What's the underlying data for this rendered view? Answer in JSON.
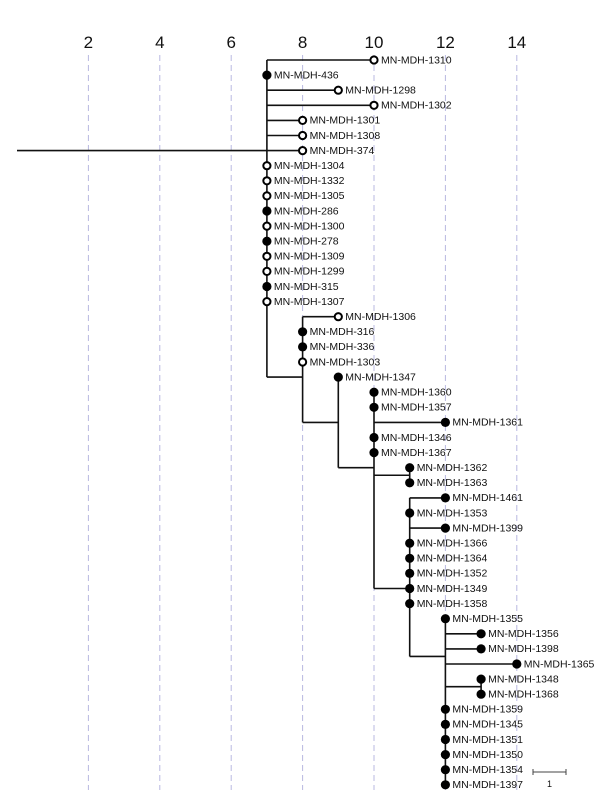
{
  "axis": {
    "ticks": [
      2,
      4,
      6,
      8,
      10,
      12,
      14
    ],
    "range": [
      0,
      15.8
    ],
    "grid": "dashed-vertical",
    "grid_color": "#b8b8e0"
  },
  "scale_bar": {
    "label": "1",
    "length": 1
  },
  "colors": {
    "line": "#111111",
    "filled_node": "#000000",
    "open_node": "#ffffff"
  },
  "tree": {
    "id": "A",
    "x": 7,
    "children": [
      {
        "label": "MN-MDH-1310",
        "x": 10,
        "filled": false
      },
      {
        "label": "MN-MDH-436",
        "x": 7,
        "filled": true
      },
      {
        "label": "MN-MDH-1298",
        "x": 9,
        "filled": false
      },
      {
        "label": "MN-MDH-1302",
        "x": 10,
        "filled": false
      },
      {
        "label": "MN-MDH-1301",
        "x": 8,
        "filled": false
      },
      {
        "label": "MN-MDH-1308",
        "x": 8,
        "filled": false
      },
      {
        "label": "MN-MDH-374",
        "x": 8,
        "filled": false
      },
      {
        "label": "MN-MDH-1304",
        "x": 7,
        "filled": false
      },
      {
        "label": "MN-MDH-1332",
        "x": 7,
        "filled": false
      },
      {
        "label": "MN-MDH-1305",
        "x": 7,
        "filled": false
      },
      {
        "label": "MN-MDH-286",
        "x": 7,
        "filled": true
      },
      {
        "label": "MN-MDH-1300",
        "x": 7,
        "filled": false
      },
      {
        "label": "MN-MDH-278",
        "x": 7,
        "filled": true
      },
      {
        "label": "MN-MDH-1309",
        "x": 7,
        "filled": false
      },
      {
        "label": "MN-MDH-1299",
        "x": 7,
        "filled": false
      },
      {
        "label": "MN-MDH-315",
        "x": 7,
        "filled": true
      },
      {
        "label": "MN-MDH-1307",
        "x": 7,
        "filled": false
      },
      {
        "id": "B",
        "x": 8,
        "children": [
          {
            "label": "MN-MDH-1306",
            "x": 9,
            "filled": false
          },
          {
            "label": "MN-MDH-316",
            "x": 8,
            "filled": true
          },
          {
            "label": "MN-MDH-336",
            "x": 8,
            "filled": true
          },
          {
            "label": "MN-MDH-1303",
            "x": 8,
            "filled": false
          },
          {
            "id": "C",
            "x": 9,
            "children": [
              {
                "label": "MN-MDH-1347",
                "x": 9,
                "filled": true
              },
              {
                "id": "D",
                "x": 10,
                "children": [
                  {
                    "label": "MN-MDH-1360",
                    "x": 10,
                    "filled": true
                  },
                  {
                    "label": "MN-MDH-1357",
                    "x": 10,
                    "filled": true
                  },
                  {
                    "label": "MN-MDH-1361",
                    "x": 12,
                    "filled": true
                  },
                  {
                    "label": "MN-MDH-1346",
                    "x": 10,
                    "filled": true
                  },
                  {
                    "label": "MN-MDH-1367",
                    "x": 10,
                    "filled": true
                  },
                  {
                    "id": "E",
                    "x": 11,
                    "children": [
                      {
                        "label": "MN-MDH-1362",
                        "x": 11,
                        "filled": true
                      },
                      {
                        "label": "MN-MDH-1363",
                        "x": 11,
                        "filled": true
                      }
                    ]
                  },
                  {
                    "id": "F",
                    "x": 11,
                    "children": [
                      {
                        "label": "MN-MDH-1461",
                        "x": 12,
                        "filled": true
                      },
                      {
                        "label": "MN-MDH-1353",
                        "x": 11,
                        "filled": true
                      },
                      {
                        "label": "MN-MDH-1399",
                        "x": 12,
                        "filled": true
                      },
                      {
                        "label": "MN-MDH-1366",
                        "x": 11,
                        "filled": true
                      },
                      {
                        "label": "MN-MDH-1364",
                        "x": 11,
                        "filled": true
                      },
                      {
                        "label": "MN-MDH-1352",
                        "x": 11,
                        "filled": true
                      },
                      {
                        "label": "MN-MDH-1349",
                        "x": 11,
                        "filled": true
                      },
                      {
                        "label": "MN-MDH-1358",
                        "x": 11,
                        "filled": true
                      },
                      {
                        "id": "G",
                        "x": 12,
                        "children": [
                          {
                            "label": "MN-MDH-1355",
                            "x": 12,
                            "filled": true
                          },
                          {
                            "label": "MN-MDH-1356",
                            "x": 13,
                            "filled": true
                          },
                          {
                            "label": "MN-MDH-1398",
                            "x": 13,
                            "filled": true
                          },
                          {
                            "label": "MN-MDH-1365",
                            "x": 14,
                            "filled": true
                          },
                          {
                            "id": "H",
                            "x": 13,
                            "children": [
                              {
                                "label": "MN-MDH-1348",
                                "x": 13,
                                "filled": true
                              },
                              {
                                "label": "MN-MDH-1368",
                                "x": 13,
                                "filled": true
                              }
                            ]
                          },
                          {
                            "label": "MN-MDH-1359",
                            "x": 12,
                            "filled": true
                          },
                          {
                            "label": "MN-MDH-1345",
                            "x": 12,
                            "filled": true
                          },
                          {
                            "label": "MN-MDH-1351",
                            "x": 12,
                            "filled": true
                          },
                          {
                            "label": "MN-MDH-1350",
                            "x": 12,
                            "filled": true
                          },
                          {
                            "label": "MN-MDH-1354",
                            "x": 12,
                            "filled": true
                          },
                          {
                            "label": "MN-MDH-1397",
                            "x": 12,
                            "filled": true
                          }
                        ]
                      }
                    ]
                  }
                ]
              }
            ]
          }
        ]
      }
    ]
  }
}
